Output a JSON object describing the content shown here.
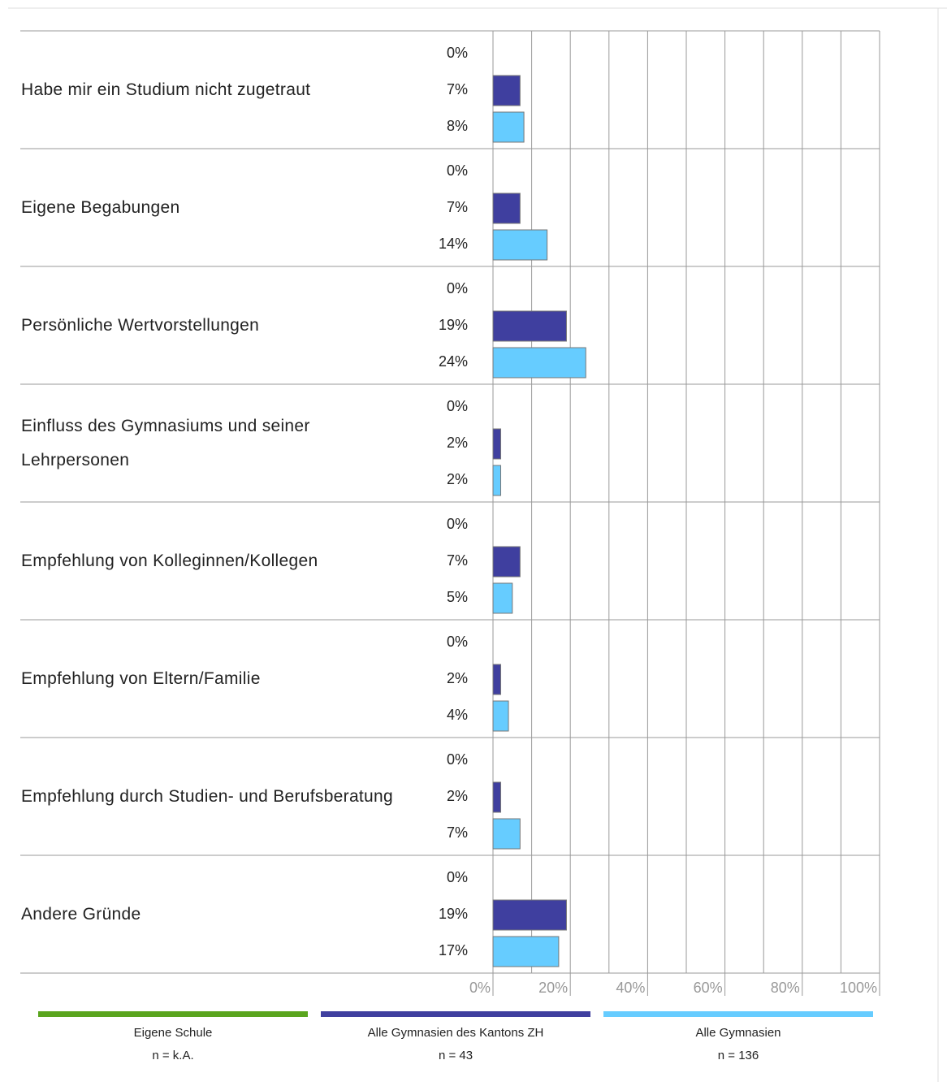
{
  "chart_data": {
    "type": "bar",
    "orientation": "horizontal",
    "categories": [
      "Habe mir ein Studium nicht zugetraut",
      "Eigene Begabungen",
      "Persönliche Wertvorstellungen",
      "Einfluss des Gymnasiums und seiner Lehrpersonen",
      "Empfehlung von Kolleginnen/Kollegen",
      "Empfehlung von Eltern/Familie",
      "Empfehlung durch Studien- und Berufsber­atung",
      "Andere Gründe"
    ],
    "series": [
      {
        "name": "Eigene Schule",
        "note": "n = k.A.",
        "color": "#5aa51e",
        "values": [
          0,
          0,
          0,
          0,
          0,
          0,
          0,
          0
        ],
        "value_labels": [
          "0%",
          "0%",
          "0%",
          "0%",
          "0%",
          "0%",
          "0%",
          "0%"
        ]
      },
      {
        "name": "Alle Gymnasien des Kantons ZH",
        "note": "n = 43",
        "color": "#3f3f9f",
        "values": [
          7,
          7,
          19,
          2,
          7,
          2,
          2,
          19
        ],
        "value_labels": [
          "7%",
          "7%",
          "19%",
          "2%",
          "7%",
          "2%",
          "2%",
          "19%"
        ]
      },
      {
        "name": "Alle Gymnasien",
        "note": "n = 136",
        "color": "#66ccff",
        "values": [
          8,
          14,
          24,
          2,
          5,
          4,
          7,
          17
        ],
        "value_labels": [
          "8%",
          "14%",
          "24%",
          "2%",
          "5%",
          "4%",
          "7%",
          "17%"
        ]
      }
    ],
    "xlim": [
      0,
      100
    ],
    "xticks": [
      {
        "value": 0,
        "label": "0%"
      },
      {
        "value": 20,
        "label": "20%"
      },
      {
        "value": 40,
        "label": "40%"
      },
      {
        "value": 60,
        "label": "60%"
      },
      {
        "value": 80,
        "label": "80%"
      },
      {
        "value": 100,
        "label": "100%"
      }
    ],
    "minor_xticks": [
      10,
      30,
      50,
      70,
      90
    ],
    "grid": true,
    "legend": "bottom"
  }
}
